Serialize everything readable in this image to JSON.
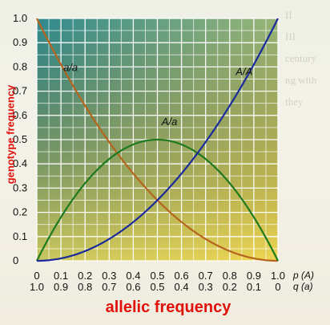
{
  "chart_data": {
    "type": "line",
    "xlabel": "allelic frequency",
    "ylabel": "genotype frequency",
    "x_ticks_p": [
      "0",
      "0.1",
      "0.2",
      "0.3",
      "0.4",
      "0.5",
      "0.6",
      "0.7",
      "0.8",
      "0.9",
      "1.0"
    ],
    "x_ticks_q": [
      "1.0",
      "0.9",
      "0.8",
      "0.7",
      "0.6",
      "0.5",
      "0.4",
      "0.3",
      "0.2",
      "0.1",
      "0"
    ],
    "x_axis_p_label": "p (A)",
    "x_axis_q_label": "q (a)",
    "y_ticks": [
      "0",
      "0.1",
      "0.2",
      "0.3",
      "0.4",
      "0.5",
      "0.6",
      "0.7",
      "0.8",
      "0.9",
      "1.0"
    ],
    "xlim": [
      0,
      1
    ],
    "ylim": [
      0,
      1
    ],
    "grid": true,
    "x": [
      0,
      0.1,
      0.2,
      0.3,
      0.4,
      0.5,
      0.6,
      0.7,
      0.8,
      0.9,
      1.0
    ],
    "series": [
      {
        "name": "a/a",
        "color": "#b5651d",
        "values": [
          1.0,
          0.81,
          0.64,
          0.49,
          0.36,
          0.25,
          0.16,
          0.09,
          0.04,
          0.01,
          0
        ]
      },
      {
        "name": "A/a",
        "color": "#1f7a1f",
        "values": [
          0,
          0.18,
          0.32,
          0.42,
          0.48,
          0.5,
          0.48,
          0.42,
          0.32,
          0.18,
          0
        ]
      },
      {
        "name": "A/A",
        "color": "#1c2b9c",
        "values": [
          0,
          0.01,
          0.04,
          0.09,
          0.16,
          0.25,
          0.36,
          0.49,
          0.64,
          0.81,
          1.0
        ]
      }
    ]
  },
  "colors": {
    "gradient_top_left": "#3a8f8a",
    "gradient_bottom": "#e6cf55",
    "axis_title_color": "#e0100a"
  }
}
